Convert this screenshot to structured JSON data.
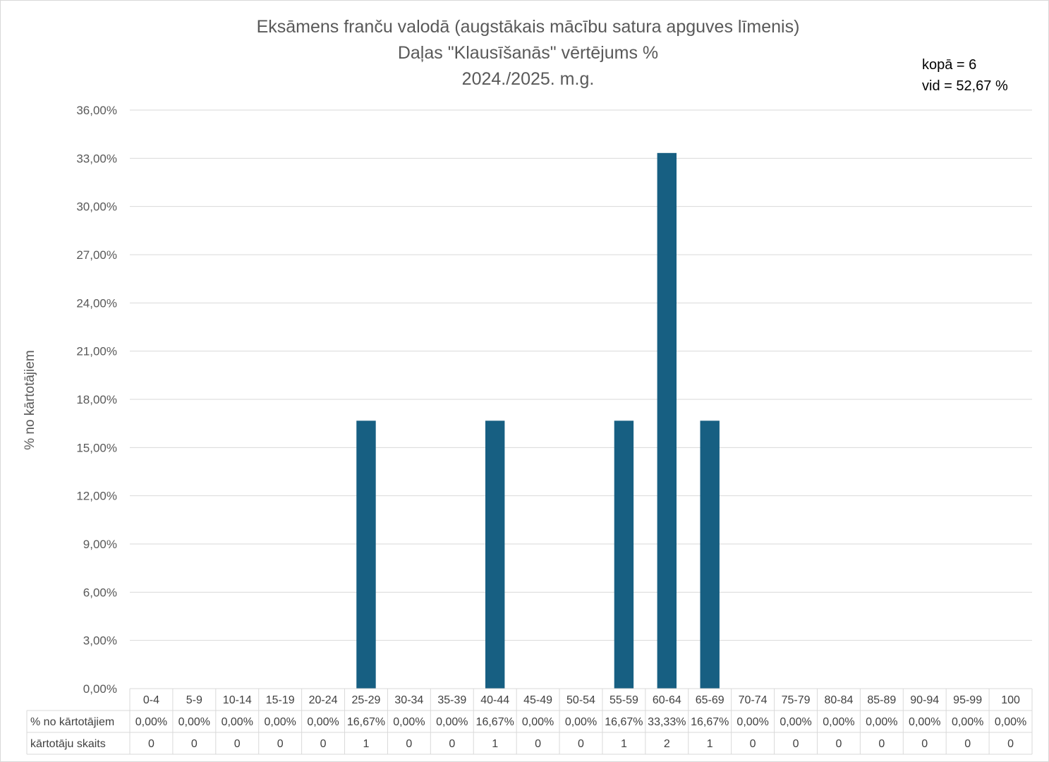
{
  "chart_data": {
    "type": "bar",
    "title_lines": [
      "Eksāmens franču valodā (augstākais mācību satura apguves līmenis)",
      "Daļas \"Klausīšanās\" vērtējums %",
      "2024./2025. m.g."
    ],
    "annotations": {
      "total": "kopā = 6",
      "average": "vid = 52,67 %"
    },
    "ylabel": "% no kārtotājiem",
    "ylim": [
      0,
      36
    ],
    "ytick_step": 3,
    "ytick_labels": [
      "0,00%",
      "3,00%",
      "6,00%",
      "9,00%",
      "12,00%",
      "15,00%",
      "18,00%",
      "21,00%",
      "24,00%",
      "27,00%",
      "30,00%",
      "33,00%",
      "36,00%"
    ],
    "grid": true,
    "bar_color": "#175f82",
    "categories": [
      "0-4",
      "5-9",
      "10-14",
      "15-19",
      "20-24",
      "25-29",
      "30-34",
      "35-39",
      "40-44",
      "45-49",
      "50-54",
      "55-59",
      "60-64",
      "65-69",
      "70-74",
      "75-79",
      "80-84",
      "85-89",
      "90-94",
      "95-99",
      "100"
    ],
    "series": [
      {
        "name": "% no kārtotājiem",
        "values": [
          0,
          0,
          0,
          0,
          0,
          16.67,
          0,
          0,
          16.67,
          0,
          0,
          16.67,
          33.33,
          16.67,
          0,
          0,
          0,
          0,
          0,
          0,
          0
        ],
        "labels": [
          "0,00%",
          "0,00%",
          "0,00%",
          "0,00%",
          "0,00%",
          "16,67%",
          "0,00%",
          "0,00%",
          "16,67%",
          "0,00%",
          "0,00%",
          "16,67%",
          "33,33%",
          "16,67%",
          "0,00%",
          "0,00%",
          "0,00%",
          "0,00%",
          "0,00%",
          "0,00%",
          "0,00%"
        ]
      }
    ],
    "table_rows": [
      {
        "label": "% no kārtotājiem",
        "series_index": 0
      },
      {
        "label": "kārtotāju skaits",
        "values": [
          "0",
          "0",
          "0",
          "0",
          "0",
          "1",
          "0",
          "0",
          "1",
          "0",
          "0",
          "1",
          "2",
          "1",
          "0",
          "0",
          "0",
          "0",
          "0",
          "0",
          "0"
        ]
      }
    ]
  }
}
